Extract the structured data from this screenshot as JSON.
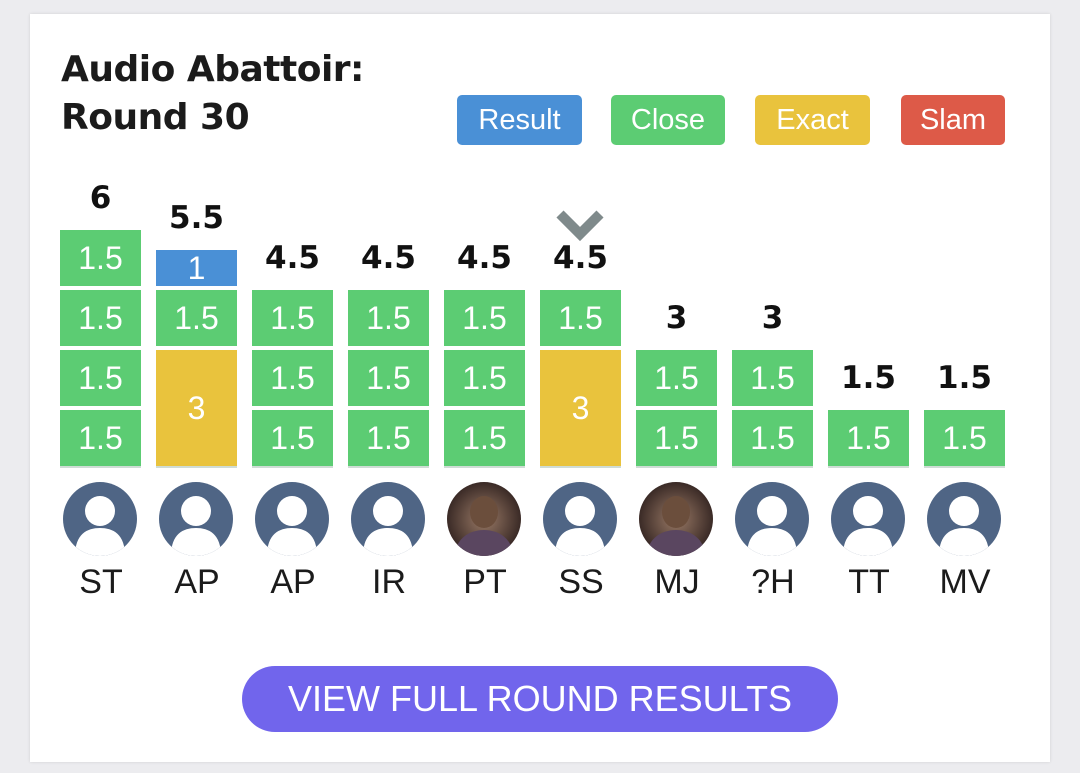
{
  "card": {
    "title_line1": "Audio Abattoir:",
    "title_line2": "Round 30"
  },
  "legend": [
    {
      "label": "Result",
      "color": "#4a90d6"
    },
    {
      "label": "Close",
      "color": "#5ccc73"
    },
    {
      "label": "Exact",
      "color": "#e9c33d"
    },
    {
      "label": "Slam",
      "color": "#dd5a48"
    }
  ],
  "chart_data": {
    "type": "bar",
    "stacked": true,
    "categories": [
      "ST",
      "AP",
      "AP",
      "IR",
      "PT",
      "SS",
      "MJ",
      "?H",
      "TT",
      "MV"
    ],
    "totals": [
      "6",
      "5.5",
      "4.5",
      "4.5",
      "4.5",
      "4.5",
      "3",
      "3",
      "1.5",
      "1.5"
    ],
    "stacks": [
      [
        {
          "kind": "close",
          "value": 1.5,
          "label": "1.5"
        },
        {
          "kind": "close",
          "value": 1.5,
          "label": "1.5"
        },
        {
          "kind": "close",
          "value": 1.5,
          "label": "1.5"
        },
        {
          "kind": "close",
          "value": 1.5,
          "label": "1.5"
        }
      ],
      [
        {
          "kind": "exact",
          "value": 3,
          "label": "3"
        },
        {
          "kind": "close",
          "value": 1.5,
          "label": "1.5"
        },
        {
          "kind": "result",
          "value": 1,
          "label": "1"
        }
      ],
      [
        {
          "kind": "close",
          "value": 1.5,
          "label": "1.5"
        },
        {
          "kind": "close",
          "value": 1.5,
          "label": "1.5"
        },
        {
          "kind": "close",
          "value": 1.5,
          "label": "1.5"
        }
      ],
      [
        {
          "kind": "close",
          "value": 1.5,
          "label": "1.5"
        },
        {
          "kind": "close",
          "value": 1.5,
          "label": "1.5"
        },
        {
          "kind": "close",
          "value": 1.5,
          "label": "1.5"
        }
      ],
      [
        {
          "kind": "close",
          "value": 1.5,
          "label": "1.5"
        },
        {
          "kind": "close",
          "value": 1.5,
          "label": "1.5"
        },
        {
          "kind": "close",
          "value": 1.5,
          "label": "1.5"
        }
      ],
      [
        {
          "kind": "exact",
          "value": 3,
          "label": "3"
        },
        {
          "kind": "close",
          "value": 1.5,
          "label": "1.5"
        }
      ],
      [
        {
          "kind": "close",
          "value": 1.5,
          "label": "1.5"
        },
        {
          "kind": "close",
          "value": 1.5,
          "label": "1.5"
        }
      ],
      [
        {
          "kind": "close",
          "value": 1.5,
          "label": "1.5"
        },
        {
          "kind": "close",
          "value": 1.5,
          "label": "1.5"
        }
      ],
      [
        {
          "kind": "close",
          "value": 1.5,
          "label": "1.5"
        }
      ],
      [
        {
          "kind": "close",
          "value": 1.5,
          "label": "1.5"
        }
      ]
    ],
    "avatars": [
      "default",
      "default",
      "default",
      "default",
      "photo",
      "default",
      "photo",
      "default",
      "default",
      "default"
    ],
    "marker": {
      "icon": "chevron-down-icon",
      "category_index": 5
    }
  },
  "cta": {
    "label": "VIEW FULL ROUND RESULTS"
  }
}
